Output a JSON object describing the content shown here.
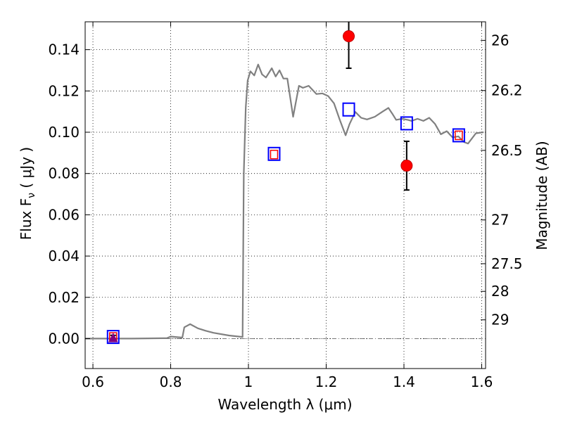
{
  "chart_data": {
    "type": "line",
    "xlabel": "Wavelength  λ (μm)",
    "ylabel": "Flux  F",
    "ylabel_sub": "ν",
    "ylabel_unit": "  ( μJy )",
    "ylabel_right": "Magnitude (AB)",
    "xlim": [
      0.58,
      1.61
    ],
    "ylim": [
      -0.0145,
      0.1535
    ],
    "grid": true,
    "x_ticks": [
      0.6,
      0.8,
      1.0,
      1.2,
      1.4,
      1.6
    ],
    "x_tick_labels": [
      "0.6",
      "0.8",
      "1",
      "1.2",
      "1.4",
      "1.6"
    ],
    "y_ticks": [
      0.0,
      0.02,
      0.04,
      0.06,
      0.08,
      0.1,
      0.12,
      0.14
    ],
    "y_tick_labels": [
      "0.00",
      "0.02",
      "0.04",
      "0.06",
      "0.08",
      "0.10",
      "0.12",
      "0.14"
    ],
    "right_ticks": [
      {
        "label": "26",
        "flux": 0.1445
      },
      {
        "label": "26.2",
        "flux": 0.1202
      },
      {
        "label": "26.5",
        "flux": 0.0912
      },
      {
        "label": "27",
        "flux": 0.0575
      },
      {
        "label": "27.5",
        "flux": 0.0363
      },
      {
        "label": "28",
        "flux": 0.0229
      },
      {
        "label": "29",
        "flux": 0.0091
      }
    ],
    "series": [
      {
        "style": "line",
        "color": "#808080",
        "x": [
          0.58,
          0.7,
          0.78,
          0.79,
          0.8,
          0.83,
          0.835,
          0.85,
          0.87,
          0.89,
          0.91,
          0.95,
          0.985,
          0.988,
          0.993,
          0.998,
          1.005,
          1.015,
          1.025,
          1.035,
          1.045,
          1.06,
          1.07,
          1.08,
          1.09,
          1.1,
          1.115,
          1.13,
          1.14,
          1.155,
          1.175,
          1.19,
          1.205,
          1.22,
          1.235,
          1.25,
          1.26,
          1.275,
          1.29,
          1.305,
          1.325,
          1.345,
          1.36,
          1.37,
          1.38,
          1.395,
          1.41,
          1.42,
          1.435,
          1.45,
          1.465,
          1.48,
          1.495,
          1.51,
          1.525,
          1.54,
          1.555,
          1.565,
          1.585,
          1.605
        ],
        "y": [
          0.0,
          0.0,
          0.0002,
          0.0002,
          0.001,
          0.0005,
          0.0055,
          0.007,
          0.005,
          0.0038,
          0.0028,
          0.0015,
          0.0008,
          0.08,
          0.112,
          0.125,
          0.1295,
          0.1275,
          0.1328,
          0.128,
          0.1265,
          0.131,
          0.127,
          0.13,
          0.126,
          0.126,
          0.1075,
          0.1225,
          0.1215,
          0.1225,
          0.1185,
          0.1188,
          0.1175,
          0.114,
          0.106,
          0.0985,
          0.104,
          0.1098,
          0.107,
          0.1062,
          0.1075,
          0.11,
          0.1118,
          0.109,
          0.106,
          0.1065,
          0.106,
          0.1055,
          0.1065,
          0.1055,
          0.107,
          0.104,
          0.099,
          0.1005,
          0.0975,
          0.098,
          0.0952,
          0.0945,
          0.0995,
          0.1
        ]
      },
      {
        "style": "open-square",
        "color": "#0000ff",
        "x": [
          0.652,
          1.066,
          1.258,
          1.407,
          1.541
        ],
        "y": [
          0.0008,
          0.0895,
          0.111,
          0.1043,
          0.0985
        ]
      },
      {
        "style": "open-square-small",
        "color": "#ff0000",
        "x": [
          0.652,
          1.066,
          1.541
        ],
        "y": [
          0.0008,
          0.0892,
          0.0985
        ]
      },
      {
        "style": "point-errorbar",
        "color": "#ff0000",
        "x": [
          1.258,
          1.407
        ],
        "y": [
          0.1465,
          0.0838
        ],
        "yerr": [
          0.0155,
          0.0118
        ]
      },
      {
        "style": "triangle-errorbar",
        "color": "#800080",
        "x": [
          0.652
        ],
        "y": [
          0.0001
        ],
        "yerr": [
          0.0015
        ]
      }
    ]
  }
}
